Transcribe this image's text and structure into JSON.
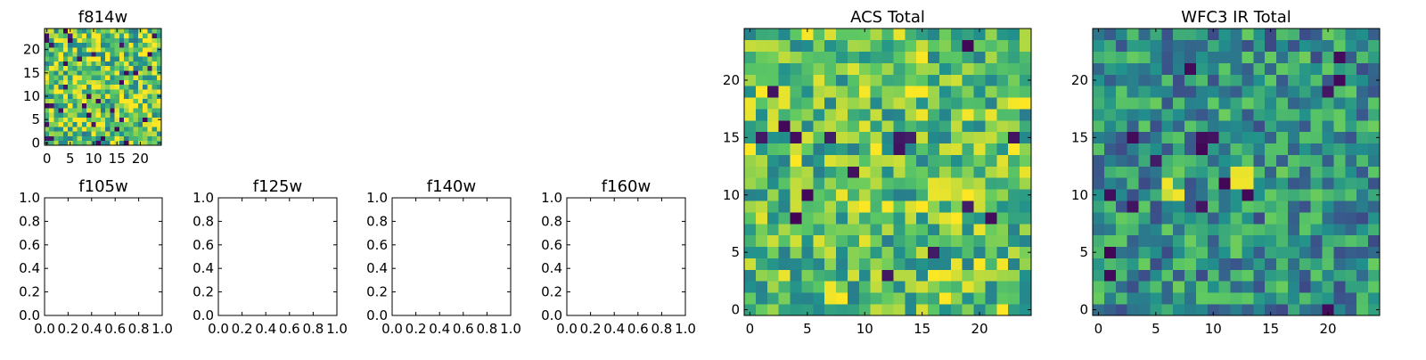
{
  "figure": {
    "background": "#ffffff"
  },
  "colormap": {
    "name": "viridis",
    "stops": [
      "#440154",
      "#3b528b",
      "#21918c",
      "#5ec962",
      "#fde725"
    ]
  },
  "chart_data": [
    {
      "id": "f814w",
      "type": "heatmap",
      "title": "f814w",
      "grid_size": 25,
      "xlim": [
        -0.5,
        24.5
      ],
      "ylim": [
        -0.5,
        24.5
      ],
      "xticks": [
        0,
        5,
        10,
        15,
        20
      ],
      "yticks": [
        0,
        5,
        10,
        15,
        20
      ],
      "xtick_labels": [
        "0",
        "5",
        "10",
        "15",
        "20"
      ],
      "ytick_labels": [
        "0",
        "5",
        "10",
        "15",
        "20"
      ],
      "value_range": [
        0,
        1
      ],
      "value_profile": "mostly yellow-green pixel noise with occasional dark outliers",
      "seed": 11,
      "base": 0.74,
      "spread": 0.34,
      "dark_fraction": 0.05,
      "hotspots": []
    },
    {
      "id": "f105w",
      "type": "empty",
      "title": "f105w",
      "xlim": [
        0,
        1
      ],
      "ylim": [
        0,
        1
      ],
      "xticks": [
        0.0,
        0.2,
        0.4,
        0.6,
        0.8,
        1.0
      ],
      "yticks": [
        0.0,
        0.2,
        0.4,
        0.6,
        0.8,
        1.0
      ],
      "xtick_labels": [
        "0.0",
        "0.2",
        "0.4",
        "0.6",
        "0.8",
        "1.0"
      ],
      "ytick_labels": [
        "0.0",
        "0.2",
        "0.4",
        "0.6",
        "0.8",
        "1.0"
      ]
    },
    {
      "id": "f125w",
      "type": "empty",
      "title": "f125w",
      "xlim": [
        0,
        1
      ],
      "ylim": [
        0,
        1
      ],
      "xticks": [
        0.0,
        0.2,
        0.4,
        0.6,
        0.8,
        1.0
      ],
      "yticks": [
        0.0,
        0.2,
        0.4,
        0.6,
        0.8,
        1.0
      ],
      "xtick_labels": [
        "0.0",
        "0.2",
        "0.4",
        "0.6",
        "0.8",
        "1.0"
      ],
      "ytick_labels": [
        "0.0",
        "0.2",
        "0.4",
        "0.6",
        "0.8",
        "1.0"
      ]
    },
    {
      "id": "f140w",
      "type": "empty",
      "title": "f140w",
      "xlim": [
        0,
        1
      ],
      "ylim": [
        0,
        1
      ],
      "xticks": [
        0.0,
        0.2,
        0.4,
        0.6,
        0.8,
        1.0
      ],
      "yticks": [
        0.0,
        0.2,
        0.4,
        0.6,
        0.8,
        1.0
      ],
      "xtick_labels": [
        "0.0",
        "0.2",
        "0.4",
        "0.6",
        "0.8",
        "1.0"
      ],
      "ytick_labels": [
        "0.0",
        "0.2",
        "0.4",
        "0.6",
        "0.8",
        "1.0"
      ]
    },
    {
      "id": "f160w",
      "type": "empty",
      "title": "f160w",
      "xlim": [
        0,
        1
      ],
      "ylim": [
        0,
        1
      ],
      "xticks": [
        0.0,
        0.2,
        0.4,
        0.6,
        0.8,
        1.0
      ],
      "yticks": [
        0.0,
        0.2,
        0.4,
        0.6,
        0.8,
        1.0
      ],
      "xtick_labels": [
        "0.0",
        "0.2",
        "0.4",
        "0.6",
        "0.8",
        "1.0"
      ],
      "ytick_labels": [
        "0.0",
        "0.2",
        "0.4",
        "0.6",
        "0.8",
        "1.0"
      ]
    },
    {
      "id": "acs-total",
      "type": "heatmap",
      "title": "ACS Total",
      "grid_size": 25,
      "xlim": [
        -0.5,
        24.5
      ],
      "ylim": [
        -0.5,
        24.5
      ],
      "xticks": [
        0,
        5,
        10,
        15,
        20
      ],
      "yticks": [
        0,
        5,
        10,
        15,
        20
      ],
      "xtick_labels": [
        "0",
        "5",
        "10",
        "15",
        "20"
      ],
      "ytick_labels": [
        "0",
        "5",
        "10",
        "15",
        "20"
      ],
      "value_range": [
        0,
        1
      ],
      "value_profile": "green to yellow pixel noise with a few dark outlier pixels",
      "seed": 23,
      "base": 0.72,
      "spread": 0.3,
      "dark_fraction": 0.025,
      "hotspots": []
    },
    {
      "id": "wfc3-ir-total",
      "type": "heatmap",
      "title": "WFC3 IR Total",
      "grid_size": 25,
      "xlim": [
        -0.5,
        24.5
      ],
      "ylim": [
        -0.5,
        24.5
      ],
      "xticks": [
        0,
        5,
        10,
        15,
        20
      ],
      "yticks": [
        0,
        5,
        10,
        15,
        20
      ],
      "xtick_labels": [
        "0",
        "5",
        "10",
        "15",
        "20"
      ],
      "ytick_labels": [
        "0",
        "5",
        "10",
        "15",
        "20"
      ],
      "value_range": [
        0,
        1
      ],
      "value_profile": "teal/blue-green noise with two bright yellow sources near (6,10.5) and (12.5,11.5)",
      "seed": 37,
      "base": 0.5,
      "spread": 0.28,
      "dark_fraction": 0.03,
      "hotspots": [
        {
          "x": 6,
          "y": 11,
          "value": 0.98
        },
        {
          "x": 7,
          "y": 10,
          "value": 0.98
        },
        {
          "x": 6,
          "y": 10,
          "value": 0.92
        },
        {
          "x": 12,
          "y": 11,
          "value": 0.98
        },
        {
          "x": 13,
          "y": 11,
          "value": 0.98
        },
        {
          "x": 12,
          "y": 12,
          "value": 0.97
        },
        {
          "x": 13,
          "y": 12,
          "value": 0.97
        }
      ]
    }
  ]
}
